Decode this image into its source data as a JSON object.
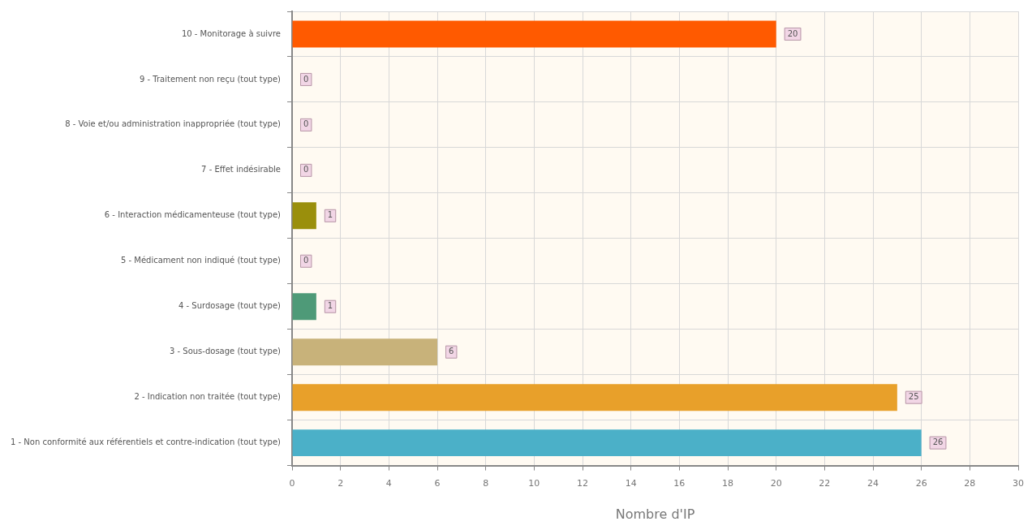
{
  "chart_data": {
    "type": "bar",
    "orientation": "horizontal",
    "xlabel": "Nombre d'IP",
    "categories": [
      "10 - Monitorage à suivre",
      "9 - Traitement non reçu (tout type)",
      "8 - Voie et/ou administration inappropriée (tout type)",
      "7 - Effet indésirable",
      "6 - Interaction médicamenteuse (tout type)",
      "5 - Médicament non indiqué (tout type)",
      "4 - Surdosage (tout type)",
      "3 - Sous-dosage (tout type)",
      "2 - Indication non traitée (tout type)",
      "1 - Non conformité aux référentiels et contre-indication (tout type)"
    ],
    "values": [
      20,
      0,
      0,
      0,
      1,
      0,
      1,
      6,
      25,
      26
    ],
    "colors": [
      "#ff5a00",
      "#c0c0c0",
      "#c0c0c0",
      "#c0c0c0",
      "#9a8f0c",
      "#c0c0c0",
      "#4e9a78",
      "#c8b27a",
      "#e8a02a",
      "#4bb0c8"
    ],
    "xlim": [
      0,
      30
    ],
    "xticks": [
      0,
      2,
      4,
      6,
      8,
      10,
      12,
      14,
      16,
      18,
      20,
      22,
      24,
      26,
      28,
      30
    ],
    "grid": true,
    "data_labels": true,
    "legend": false
  }
}
